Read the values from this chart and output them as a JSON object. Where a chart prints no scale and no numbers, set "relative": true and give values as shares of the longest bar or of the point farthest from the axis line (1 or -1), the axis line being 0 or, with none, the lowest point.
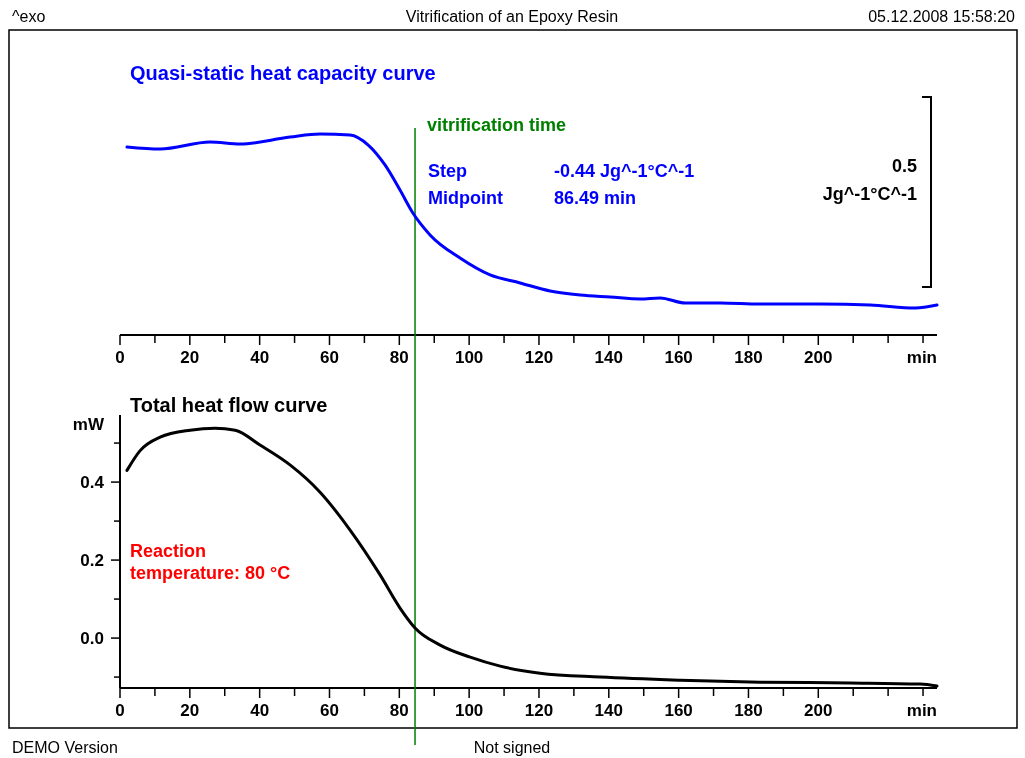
{
  "chart_data": [
    {
      "type": "line",
      "title": "Quasi-static heat capacity curve",
      "relative": true,
      "xlabel": "min",
      "x": [
        2,
        11.5,
        25.8,
        34.4,
        48.7,
        57.3,
        65.9,
        71.1,
        75.9,
        80.2,
        83.7,
        88.8,
        97.4,
        106,
        114.6,
        123.2,
        131.8,
        140.4,
        149,
        154.7,
        161.9,
        171.9,
        183.4,
        200.6,
        214.9,
        227.8,
        234
      ],
      "series": [
        {
          "color": "#0000ff",
          "values": [
            0.935,
            0.925,
            0.96,
            0.95,
            0.985,
            1,
            0.995,
            0.945,
            0.846,
            0.721,
            0.612,
            0.498,
            0.383,
            0.299,
            0.259,
            0.219,
            0.199,
            0.189,
            0.179,
            0.184,
            0.159,
            0.159,
            0.154,
            0.154,
            0.149,
            0.134,
            0.149
          ]
        }
      ],
      "xlim": [
        0,
        234
      ],
      "xticks": [
        0,
        {
          "value": 10,
          "label": null
        },
        20,
        {
          "value": 30,
          "label": null
        },
        40,
        {
          "value": 50,
          "label": null
        },
        60,
        {
          "value": 70,
          "label": null
        },
        80,
        {
          "value": 90,
          "label": null
        },
        100,
        {
          "value": 110,
          "label": null
        },
        120,
        {
          "value": 130,
          "label": null
        },
        140,
        {
          "value": 150,
          "label": null
        },
        160,
        {
          "value": 170,
          "label": null
        },
        180,
        {
          "value": 190,
          "label": null
        },
        200,
        {
          "value": 210,
          "label": null
        },
        {
          "value": 220,
          "label": null
        },
        {
          "value": 230,
          "label": null
        }
      ],
      "ref_lines": [
        {
          "axis": "x",
          "value": 84.5,
          "label": "vitrification time",
          "color": "#008000"
        }
      ],
      "annotations": [
        "^exo",
        "Vitrification of an Epoxy Resin",
        "05.12.2008 15:58:20",
        "Step",
        "-0.44 Jg^-1°C^-1",
        "Midpoint",
        "86.49 min",
        "0.5",
        "Jg^-1°C^-1"
      ],
      "grid": false,
      "marker": "none",
      "line_style": "solid"
    },
    {
      "type": "line",
      "title": "Total heat flow curve",
      "ylabel": "mW",
      "xlabel": "min",
      "x": [
        2,
        5.7,
        11.5,
        20.1,
        27.2,
        33,
        40.1,
        48.7,
        57.3,
        65.9,
        74.5,
        80.2,
        84.5,
        91.7,
        100.3,
        108.9,
        120.3,
        137.5,
        160.5,
        183.4,
        209.2,
        229.2,
        234
      ],
      "series": [
        {
          "color": "#000000",
          "values": [
            0.43,
            0.48,
            0.515,
            0.533,
            0.538,
            0.533,
            0.495,
            0.444,
            0.374,
            0.277,
            0.162,
            0.077,
            0.026,
            -0.018,
            -0.049,
            -0.072,
            -0.09,
            -0.1,
            -0.108,
            -0.113,
            -0.115,
            -0.118,
            -0.123
          ]
        }
      ],
      "xlim": [
        0,
        234
      ],
      "xticks": [
        0,
        {
          "value": 10,
          "label": null
        },
        20,
        {
          "value": 30,
          "label": null
        },
        40,
        {
          "value": 50,
          "label": null
        },
        60,
        {
          "value": 70,
          "label": null
        },
        80,
        {
          "value": 90,
          "label": null
        },
        100,
        {
          "value": 110,
          "label": null
        },
        120,
        {
          "value": 130,
          "label": null
        },
        140,
        {
          "value": 150,
          "label": null
        },
        160,
        {
          "value": 170,
          "label": null
        },
        180,
        {
          "value": 190,
          "label": null
        },
        200,
        {
          "value": 210,
          "label": null
        },
        {
          "value": 220,
          "label": null
        },
        {
          "value": 230,
          "label": null
        }
      ],
      "ylim": [
        -0.128,
        0.572
      ],
      "yticks": [
        {
          "value": -0.1,
          "label": null
        },
        {
          "value": 0,
          "label": "0.0"
        },
        {
          "value": 0.1,
          "label": null
        },
        0.2,
        {
          "value": 0.3,
          "label": null
        },
        0.4,
        {
          "value": 0.5,
          "label": null
        }
      ],
      "ref_lines": [
        {
          "axis": "x",
          "value": 84.5,
          "color": "#008000"
        }
      ],
      "annotations": [
        "Reaction temperature: 80 °C",
        "DEMO Version",
        "Not signed"
      ],
      "grid": false,
      "marker": "none",
      "line_style": "solid"
    }
  ]
}
